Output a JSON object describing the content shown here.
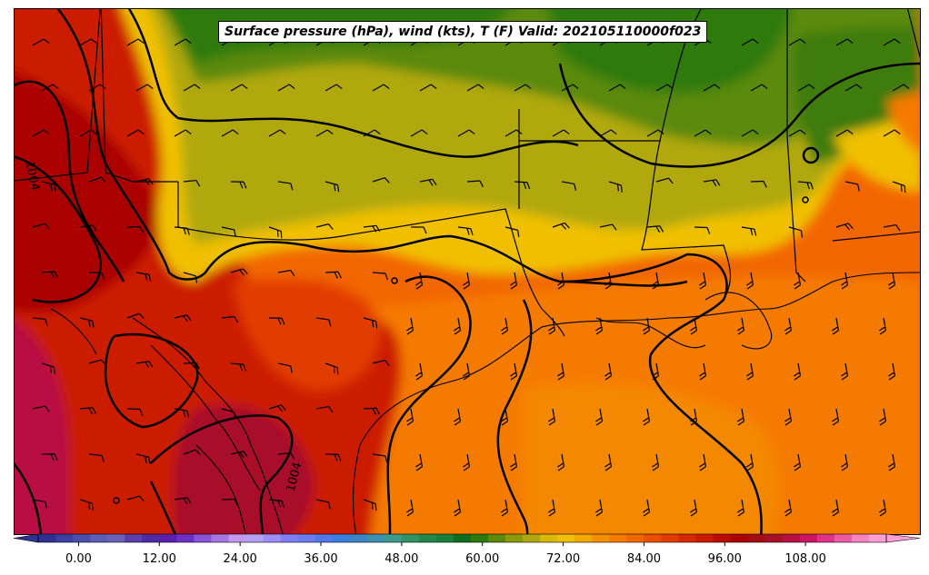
{
  "title": "Surface pressure (hPa), wind (kts), T (F) Valid: 202105110000f023",
  "colorbar": {
    "tick_labels": [
      "0.00",
      "12.00",
      "24.00",
      "36.00",
      "48.00",
      "60.00",
      "72.00",
      "84.00",
      "96.00",
      "108.00"
    ],
    "tick_values": [
      0,
      12,
      24,
      36,
      48,
      60,
      72,
      84,
      96,
      108
    ],
    "min": -6,
    "max": 120,
    "step": 2.5,
    "colors": [
      "#2e3192",
      "#3b3fa0",
      "#4a4faf",
      "#5b5fb8",
      "#6a63b9",
      "#5a40ad",
      "#4f2aa6",
      "#5b1fb0",
      "#6e30c4",
      "#8a52d6",
      "#a677e3",
      "#c398ee",
      "#b6a2f5",
      "#9c8ff7",
      "#7f7ef5",
      "#6a7cf0",
      "#4f79ea",
      "#3a7ee0",
      "#3b84c8",
      "#3c90b0",
      "#3a9a8c",
      "#2f9466",
      "#22884a",
      "#17803a",
      "#0d6f1e",
      "#2d7a0e",
      "#5c8a0a",
      "#8a9a0c",
      "#b0a810",
      "#d8b808",
      "#f0c000",
      "#f2a800",
      "#f49000",
      "#f57a00",
      "#f26600",
      "#ea5000",
      "#e23c00",
      "#d82800",
      "#cc1a00",
      "#bb0a00",
      "#aa0000",
      "#a20e10",
      "#a8102a",
      "#b80f45",
      "#cf1466",
      "#e0328a",
      "#ee5aa6",
      "#f884c4",
      "#ff9fd6"
    ]
  },
  "contour_labels": [
    "1004",
    "1004"
  ]
}
